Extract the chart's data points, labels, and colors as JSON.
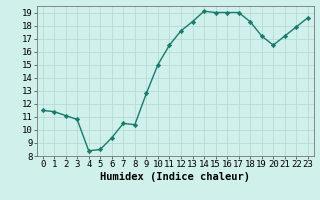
{
  "x": [
    0,
    1,
    2,
    3,
    4,
    5,
    6,
    7,
    8,
    9,
    10,
    11,
    12,
    13,
    14,
    15,
    16,
    17,
    18,
    19,
    20,
    21,
    22,
    23
  ],
  "y": [
    11.5,
    11.4,
    11.1,
    10.8,
    8.4,
    8.5,
    9.4,
    10.5,
    10.4,
    12.8,
    15.0,
    16.5,
    17.6,
    18.3,
    19.1,
    19.0,
    19.0,
    19.0,
    18.3,
    17.2,
    16.5,
    17.2,
    17.9,
    18.6
  ],
  "line_color": "#1a7a6e",
  "marker": "D",
  "marker_size": 2.2,
  "bg_color": "#cff0eb",
  "grid_color": "#b8dbd6",
  "xlabel": "Humidex (Indice chaleur)",
  "xlim": [
    -0.5,
    23.5
  ],
  "ylim": [
    8,
    19.5
  ],
  "yticks": [
    8,
    9,
    10,
    11,
    12,
    13,
    14,
    15,
    16,
    17,
    18,
    19
  ],
  "xticks": [
    0,
    1,
    2,
    3,
    4,
    5,
    6,
    7,
    8,
    9,
    10,
    11,
    12,
    13,
    14,
    15,
    16,
    17,
    18,
    19,
    20,
    21,
    22,
    23
  ],
  "xlabel_fontsize": 7.5,
  "tick_fontsize": 6.5,
  "line_width": 1.0
}
